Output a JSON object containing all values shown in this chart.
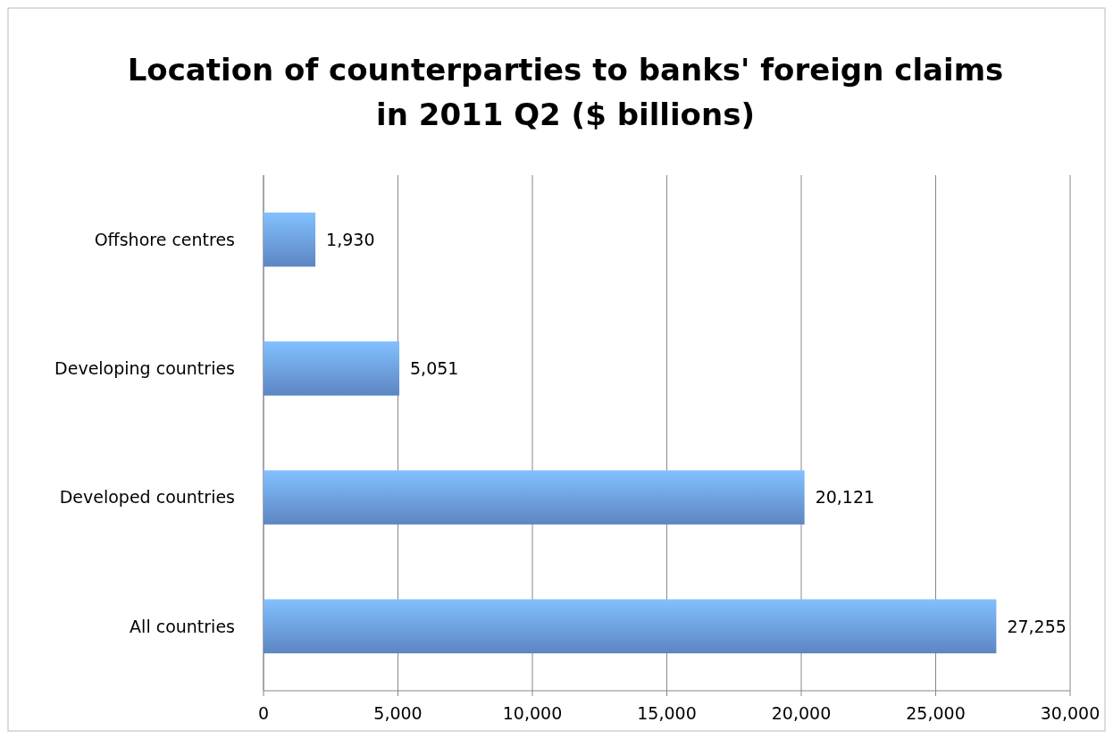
{
  "chart_data": {
    "type": "bar",
    "orientation": "horizontal",
    "title": "Location of counterparties to banks' foreign claims in 2011 Q2 ($ billions)",
    "categories": [
      "Offshore centres",
      "Developing countries",
      "Developed countries",
      "All countries"
    ],
    "values": [
      1930,
      5051,
      20121,
      27255
    ],
    "value_labels": [
      "1,930",
      "5,051",
      "20,121",
      "27,255"
    ],
    "color": "#6a9be0",
    "xlim": [
      0,
      30000
    ],
    "xticks": [
      {
        "value": 0,
        "label": "0"
      },
      {
        "value": 5000,
        "label": "5,000"
      },
      {
        "value": 10000,
        "label": "10,000"
      },
      {
        "value": 15000,
        "label": "15,000"
      },
      {
        "value": 20000,
        "label": "20,000"
      },
      {
        "value": 25000,
        "label": "25,000"
      },
      {
        "value": 30000,
        "label": "30,000"
      }
    ],
    "grid": "x"
  }
}
